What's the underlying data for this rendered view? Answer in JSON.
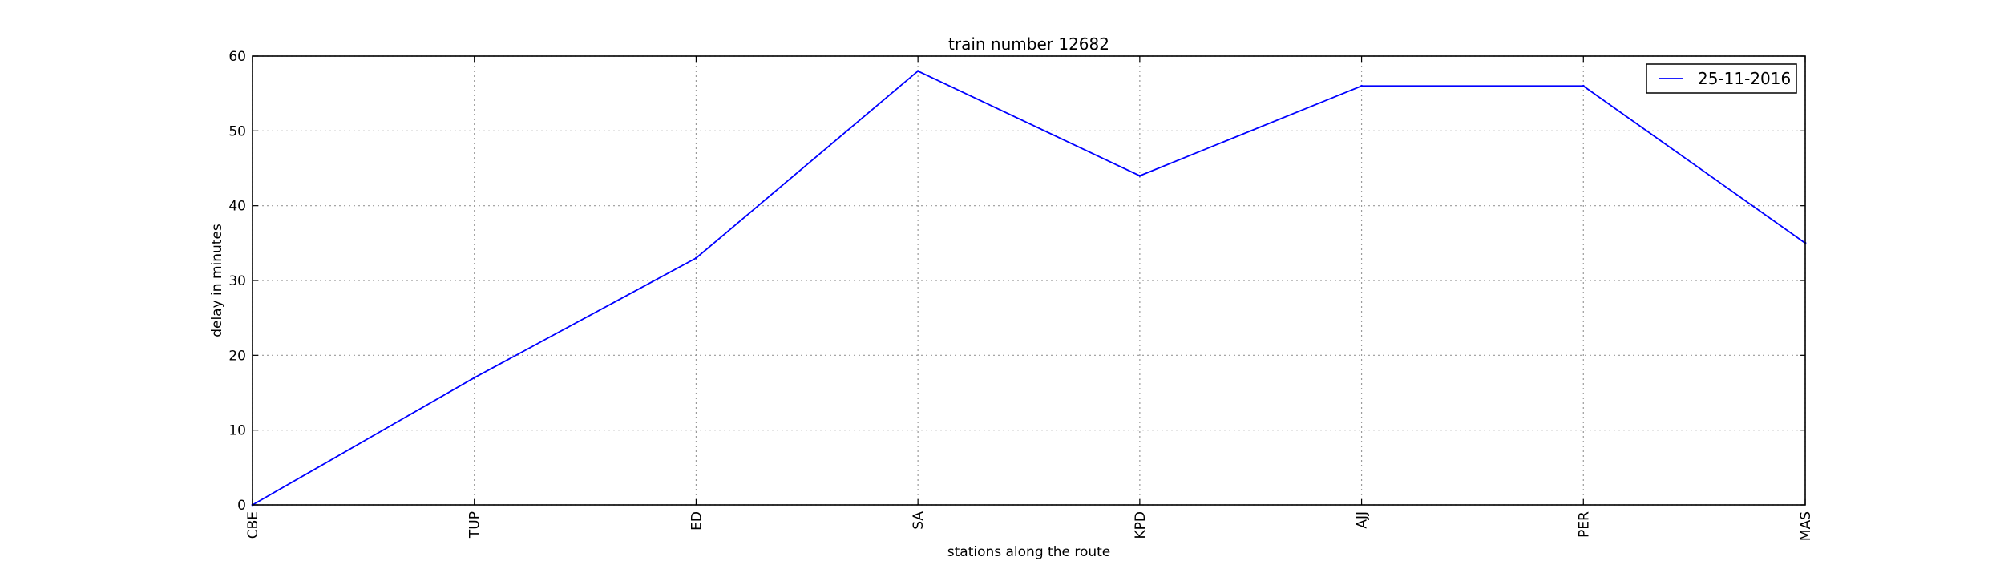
{
  "chart_data": {
    "type": "line",
    "title": "train number 12682",
    "xlabel": "stations along the route",
    "ylabel": "delay in minutes",
    "categories": [
      "CBE",
      "TUP",
      "ED",
      "SA",
      "KPD",
      "AJJ",
      "PER",
      "MAS"
    ],
    "series": [
      {
        "name": "25-11-2016",
        "values": [
          0,
          17,
          33,
          58,
          44,
          56,
          56,
          35
        ],
        "color": "#0000ff"
      }
    ],
    "ylim": [
      0,
      60
    ],
    "yticks": [
      0,
      10,
      20,
      30,
      40,
      50,
      60
    ],
    "grid": true,
    "legend": "top-right"
  }
}
